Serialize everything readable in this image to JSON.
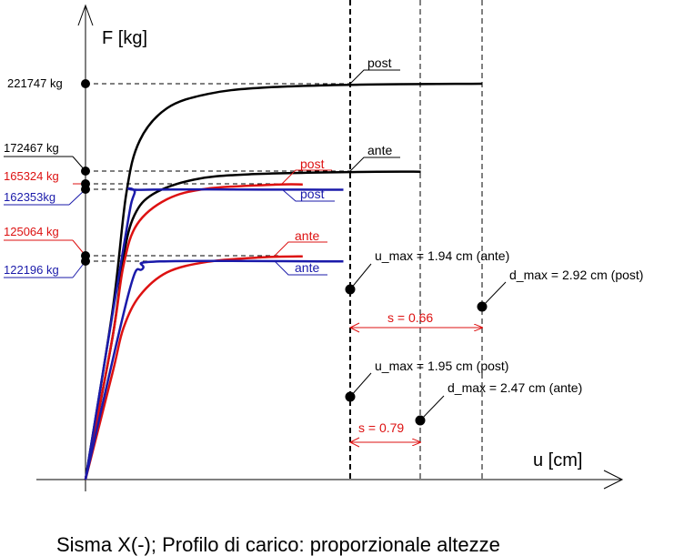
{
  "chart_data": {
    "type": "line",
    "title": "Sisma X(-); Profilo di carico: proporzionale altezze",
    "xlabel": "u [cm]",
    "ylabel": "F [kg]",
    "x_unit": "cm",
    "y_unit": "kg",
    "xlim": [
      0,
      4.0
    ],
    "ylim": [
      0,
      250000
    ],
    "series": [
      {
        "name": "post",
        "color": "#000000",
        "points": [
          [
            0,
            0
          ],
          [
            0.2,
            95000
          ],
          [
            0.3,
            160000
          ],
          [
            0.4,
            190000
          ],
          [
            0.6,
            208000
          ],
          [
            0.9,
            216000
          ],
          [
            1.3,
            219500
          ],
          [
            2.0,
            221200
          ],
          [
            2.92,
            221747
          ]
        ]
      },
      {
        "name": "ante",
        "color": "#000000",
        "points": [
          [
            0,
            0
          ],
          [
            0.2,
            80000
          ],
          [
            0.28,
            125000
          ],
          [
            0.36,
            148000
          ],
          [
            0.5,
            160000
          ],
          [
            0.8,
            168000
          ],
          [
            1.2,
            171000
          ],
          [
            2.0,
            172300
          ],
          [
            2.47,
            172467
          ]
        ]
      },
      {
        "name": "post",
        "color": "#dd1111",
        "points": [
          [
            0,
            0
          ],
          [
            0.2,
            80000
          ],
          [
            0.28,
            120000
          ],
          [
            0.38,
            143000
          ],
          [
            0.6,
            157000
          ],
          [
            0.9,
            163000
          ],
          [
            1.4,
            165200
          ],
          [
            1.6,
            165324
          ]
        ]
      },
      {
        "name": "post",
        "color": "#1a1aaa",
        "points": [
          [
            0,
            0
          ],
          [
            0.28,
            130000
          ],
          [
            0.36,
            160000
          ],
          [
            0.45,
            162353
          ],
          [
            1.9,
            162353
          ]
        ]
      },
      {
        "name": "ante",
        "color": "#dd1111",
        "points": [
          [
            0,
            0
          ],
          [
            0.2,
            60000
          ],
          [
            0.28,
            85000
          ],
          [
            0.4,
            103000
          ],
          [
            0.6,
            116000
          ],
          [
            0.9,
            122000
          ],
          [
            1.3,
            124500
          ],
          [
            1.6,
            125064
          ]
        ]
      },
      {
        "name": "ante",
        "color": "#1a1aaa",
        "points": [
          [
            0,
            0
          ],
          [
            0.32,
            105000
          ],
          [
            0.42,
            118000
          ],
          [
            0.55,
            122196
          ],
          [
            1.9,
            122196
          ]
        ]
      }
    ],
    "force_labels": [
      {
        "text": "221747 kg",
        "value": 221747,
        "color": "#000000"
      },
      {
        "text": "172467 kg",
        "value": 172467,
        "color": "#000000"
      },
      {
        "text": "165324 kg",
        "value": 165324,
        "color": "#dd1111"
      },
      {
        "text": "162353kg",
        "value": 162353,
        "color": "#1a1aaa"
      },
      {
        "text": "125064 kg",
        "value": 125064,
        "color": "#dd1111"
      },
      {
        "text": "122196 kg",
        "value": 122196,
        "color": "#1a1aaa"
      }
    ],
    "vertical_lines": [
      {
        "x": 1.95,
        "style": "dashed-bold"
      },
      {
        "x": 2.47,
        "style": "dashed"
      },
      {
        "x": 2.92,
        "style": "dashed"
      }
    ],
    "annotations": [
      {
        "text": "u_max = 1.94 cm (ante)",
        "x": 1.94
      },
      {
        "text": "d_max = 2.92 cm (post)",
        "x": 2.92
      },
      {
        "text": "s = 0.66"
      },
      {
        "text": "u_max = 1.95 cm (post)",
        "x": 1.95
      },
      {
        "text": "d_max = 2.47 cm (ante)",
        "x": 2.47
      },
      {
        "text": "s = 0.79"
      }
    ],
    "grid": false
  }
}
